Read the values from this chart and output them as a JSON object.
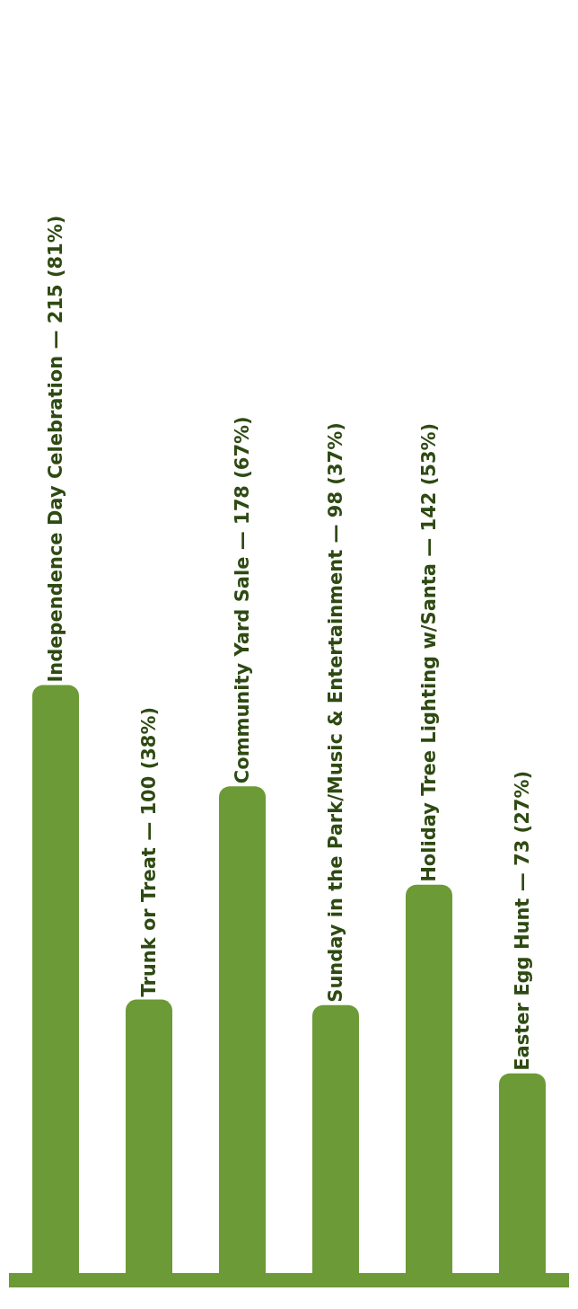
{
  "chart_data": {
    "type": "bar",
    "categories": [
      null,
      null,
      null,
      null,
      null,
      null
    ],
    "values": [
      215,
      100,
      178,
      98,
      142,
      73
    ],
    "value_labels": [
      "Independence Day Celebration — 215 (81%)",
      "Trunk or Treat — 100 (38%)",
      "Community Yard Sale — 178 (67%)",
      "Sunday in the Park/Music & Entertainment — 98 (37%)",
      "Holiday Tree Lighting w/Santa — 142 (53%)",
      "Easter Egg Hunt — 73 (27%)"
    ],
    "color": "#6b9a36",
    "tick_labels": false
  }
}
